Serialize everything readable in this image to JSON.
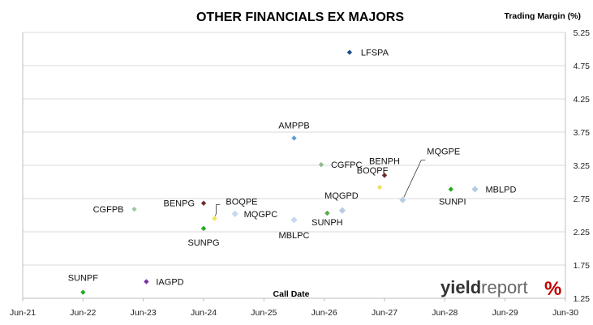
{
  "chart_data": {
    "type": "scatter",
    "title": "OTHER FINANCIALS EX MAJORS",
    "xlabel": "Call Date",
    "ylabel": "Trading Margin (%)",
    "x_ticks": [
      "Jun-21",
      "Jun-22",
      "Jun-23",
      "Jun-24",
      "Jun-25",
      "Jun-26",
      "Jun-27",
      "Jun-28",
      "Jun-29",
      "Jun-30"
    ],
    "xlim": [
      2021.0,
      2030.0
    ],
    "y_ticks": [
      "1.25",
      "1.75",
      "2.25",
      "2.75",
      "3.25",
      "3.75",
      "4.25",
      "4.75",
      "5.25"
    ],
    "ylim": [
      1.25,
      5.25
    ],
    "points": [
      {
        "label": "LFSPA",
        "x": 2026.42,
        "y": 4.95,
        "color": "#1f4e8c"
      },
      {
        "label": "AMPPB",
        "x": 2025.5,
        "y": 3.66,
        "color": "#5b9bd5"
      },
      {
        "label": "CGFPC",
        "x": 2025.95,
        "y": 3.26,
        "color": "#8fbc8f"
      },
      {
        "label": "BENPH",
        "x": 2027.0,
        "y": 3.1,
        "color": "#6b2a2a"
      },
      {
        "label": "MQGPE",
        "x": 2027.3,
        "y": 2.73,
        "color": "#b8cce4"
      },
      {
        "label": "BOQPF",
        "x": 2026.92,
        "y": 2.92,
        "color": "#f0e060"
      },
      {
        "label": "SUNPI",
        "x": 2028.1,
        "y": 2.89,
        "color": "#22aa22"
      },
      {
        "label": "MBLPD",
        "x": 2028.5,
        "y": 2.89,
        "color": "#b8cce4"
      },
      {
        "label": "MQGPD",
        "x": 2026.3,
        "y": 2.57,
        "color": "#b8cce4"
      },
      {
        "label": "SUNPH",
        "x": 2026.05,
        "y": 2.53,
        "color": "#55aa44"
      },
      {
        "label": "MBLPC",
        "x": 2025.5,
        "y": 2.43,
        "color": "#c6d9f0"
      },
      {
        "label": "CGFPB",
        "x": 2022.85,
        "y": 2.59,
        "color": "#9bc89b"
      },
      {
        "label": "BENPG",
        "x": 2024.0,
        "y": 2.68,
        "color": "#6b2a2a"
      },
      {
        "label": "BOQPE",
        "x": 2024.18,
        "y": 2.45,
        "color": "#f0e060"
      },
      {
        "label": "MQGPC",
        "x": 2024.52,
        "y": 2.52,
        "color": "#c6d9f0"
      },
      {
        "label": "SUNPG",
        "x": 2024.0,
        "y": 2.3,
        "color": "#22aa22"
      },
      {
        "label": "SUNPF",
        "x": 2022.0,
        "y": 1.34,
        "color": "#22aa22"
      },
      {
        "label": "IAGPD",
        "x": 2023.05,
        "y": 1.5,
        "color": "#7b2fa8"
      }
    ],
    "grid": true,
    "legend": "none"
  },
  "logo": {
    "yield": "yield",
    "report": "report",
    "percent": "%"
  }
}
